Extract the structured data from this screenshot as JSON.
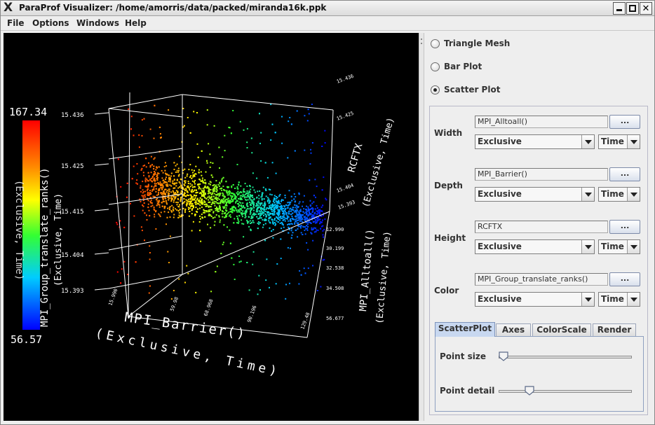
{
  "window": {
    "title": "ParaProf Visualizer: /home/amorris/data/packed/miranda16k.ppk"
  },
  "menu": [
    "File",
    "Options",
    "Windows",
    "Help"
  ],
  "plot_types": [
    {
      "label": "Triangle Mesh",
      "selected": false
    },
    {
      "label": "Bar Plot",
      "selected": false
    },
    {
      "label": "Scatter Plot",
      "selected": true
    }
  ],
  "axes": [
    {
      "label": "Width",
      "function": "MPI_Alltoall()",
      "metric": "Exclusive",
      "unit": "Time",
      "browse": "..."
    },
    {
      "label": "Depth",
      "function": "MPI_Barrier()",
      "metric": "Exclusive",
      "unit": "Time",
      "browse": "..."
    },
    {
      "label": "Height",
      "function": "RCFTX",
      "metric": "Exclusive",
      "unit": "Time",
      "browse": "..."
    },
    {
      "label": "Color",
      "function": "MPI_Group_translate_ranks()",
      "metric": "Exclusive",
      "unit": "Time",
      "browse": "..."
    }
  ],
  "tabs": [
    "ScatterPlot",
    "Axes",
    "ColorScale",
    "Render"
  ],
  "active_tab": "ScatterPlot",
  "sliders": [
    {
      "label": "Point size",
      "value": 0.0
    },
    {
      "label": "Point detail",
      "value": 0.21
    }
  ],
  "plot": {
    "color_scale": {
      "max": "167.34",
      "min": "56.57",
      "title": "MPI_Group_translate_ranks()",
      "subtitle": "(Exclusive, Time)"
    },
    "height_axis": {
      "title": "RCFTX",
      "subtitle": "(Exclusive, Time)",
      "ticks": [
        "15.436",
        "15.425",
        "15.415",
        "15.404",
        "15.393"
      ]
    },
    "depth_axis": {
      "title": "MPI_Barrier()",
      "subtitle": "(Exclusive, Time)",
      "ticks": [
        "15.990",
        "59.98",
        "68.968",
        "90.196",
        "129.48"
      ]
    },
    "width_axis": {
      "title": "MPI_Alltoall()",
      "subtitle": "(Exclusive, Time)",
      "ticks": [
        "12.990",
        "30.199",
        "32.538",
        "34.508",
        "56.677"
      ]
    },
    "right_height_ticks": [
      "15.436",
      "15.425",
      "15.404",
      "15.393"
    ],
    "colors": {
      "background": "#000000",
      "axes": "#ffffff"
    }
  }
}
